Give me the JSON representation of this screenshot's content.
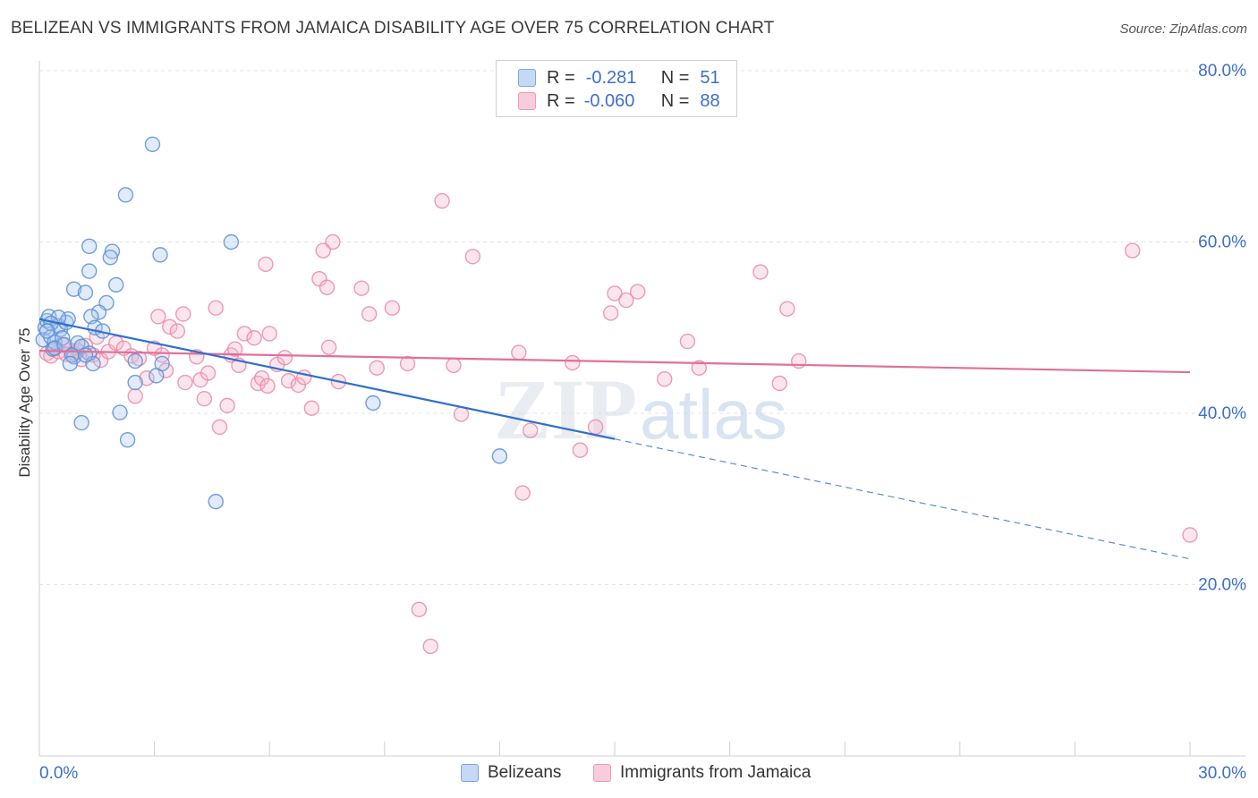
{
  "title": "BELIZEAN VS IMMIGRANTS FROM JAMAICA DISABILITY AGE OVER 75 CORRELATION CHART",
  "source": "Source: ZipAtlas.com",
  "watermark": {
    "zip": "ZIP",
    "atlas": "atlas"
  },
  "legend": {
    "rows": [
      {
        "r_label": "R =",
        "r_value": "-0.281",
        "n_label": "N =",
        "n_value": "51"
      },
      {
        "r_label": "R =",
        "r_value": "-0.060",
        "n_label": "N =",
        "n_value": "88"
      }
    ]
  },
  "colors": {
    "blue_fill": "#a9c6ee",
    "blue_stroke": "#5b8ed6",
    "blue_line": "#2f6fce",
    "pink_fill": "#f5b8cb",
    "pink_stroke": "#e98aa8",
    "pink_line": "#e0709a",
    "tick_text": "#3d6fc9",
    "grid": "#e4e4e4"
  },
  "chart_data": {
    "type": "scatter",
    "title": "BELIZEAN VS IMMIGRANTS FROM JAMAICA DISABILITY AGE OVER 75 CORRELATION CHART",
    "xlabel": "",
    "ylabel": "Disability Age Over 75",
    "xlim": [
      0,
      30
    ],
    "ylim": [
      0,
      80
    ],
    "x_ticks": [
      {
        "value": 0,
        "label": "0.0%"
      },
      {
        "value": 30,
        "label": "30.0%"
      }
    ],
    "y_ticks": [
      {
        "value": 20,
        "label": "20.0%"
      },
      {
        "value": 40,
        "label": "40.0%"
      },
      {
        "value": 60,
        "label": "60.0%"
      },
      {
        "value": 80,
        "label": "80.0%"
      }
    ],
    "grid": true,
    "legend_position": "bottom",
    "series": [
      {
        "name": "Belizeans",
        "color": "#5b8ed6",
        "R": -0.281,
        "N": 51,
        "trend": {
          "x0": 0,
          "y0": 51.0,
          "x1": 15,
          "y1": 37.0,
          "dashed_to_x": 30,
          "dashed_to_y": 23.0
        },
        "points": [
          [
            0.1,
            48.6
          ],
          [
            0.15,
            50.0
          ],
          [
            0.2,
            50.8
          ],
          [
            0.25,
            51.3
          ],
          [
            0.3,
            48.9
          ],
          [
            0.35,
            47.5
          ],
          [
            0.4,
            48.3
          ],
          [
            0.5,
            50.2
          ],
          [
            0.55,
            49.8
          ],
          [
            0.6,
            48.8
          ],
          [
            0.7,
            50.6
          ],
          [
            0.75,
            51.0
          ],
          [
            0.5,
            51.2
          ],
          [
            0.3,
            50.5
          ],
          [
            0.2,
            49.6
          ],
          [
            0.4,
            47.6
          ],
          [
            0.65,
            48.0
          ],
          [
            0.9,
            46.6
          ],
          [
            1.0,
            48.2
          ],
          [
            1.1,
            47.8
          ],
          [
            0.85,
            46.8
          ],
          [
            1.3,
            47.0
          ],
          [
            1.4,
            45.8
          ],
          [
            0.8,
            45.8
          ],
          [
            1.2,
            46.8
          ],
          [
            0.9,
            54.5
          ],
          [
            1.2,
            54.1
          ],
          [
            1.3,
            56.6
          ],
          [
            1.3,
            59.5
          ],
          [
            1.9,
            58.9
          ],
          [
            1.85,
            58.2
          ],
          [
            2.0,
            55.0
          ],
          [
            1.75,
            52.9
          ],
          [
            1.55,
            51.8
          ],
          [
            1.35,
            51.3
          ],
          [
            1.45,
            50.0
          ],
          [
            1.65,
            49.6
          ],
          [
            2.25,
            65.5
          ],
          [
            2.95,
            71.4
          ],
          [
            3.15,
            58.5
          ],
          [
            5.0,
            60.0
          ],
          [
            2.5,
            46.1
          ],
          [
            3.05,
            44.4
          ],
          [
            3.2,
            45.8
          ],
          [
            2.5,
            43.6
          ],
          [
            2.1,
            40.1
          ],
          [
            1.1,
            38.9
          ],
          [
            2.3,
            36.9
          ],
          [
            4.6,
            29.7
          ],
          [
            8.7,
            41.2
          ],
          [
            12.0,
            35.0
          ]
        ]
      },
      {
        "name": "Immigrants from Jamaica",
        "color": "#e98aa8",
        "R": -0.06,
        "N": 88,
        "trend": {
          "x0": 0,
          "y0": 47.3,
          "x1": 30,
          "y1": 44.8
        },
        "points": [
          [
            0.2,
            47.0
          ],
          [
            0.3,
            46.7
          ],
          [
            0.5,
            47.2
          ],
          [
            0.6,
            48.0
          ],
          [
            0.8,
            47.4
          ],
          [
            0.9,
            47.0
          ],
          [
            1.1,
            46.3
          ],
          [
            1.2,
            47.9
          ],
          [
            1.4,
            46.8
          ],
          [
            1.6,
            46.2
          ],
          [
            1.8,
            47.2
          ],
          [
            2.0,
            48.2
          ],
          [
            2.2,
            47.6
          ],
          [
            2.4,
            46.7
          ],
          [
            2.6,
            46.4
          ],
          [
            2.8,
            44.1
          ],
          [
            3.0,
            47.6
          ],
          [
            3.2,
            46.8
          ],
          [
            3.4,
            50.1
          ],
          [
            3.6,
            49.6
          ],
          [
            3.1,
            51.3
          ],
          [
            3.75,
            51.6
          ],
          [
            4.6,
            52.3
          ],
          [
            3.8,
            43.6
          ],
          [
            4.1,
            46.6
          ],
          [
            4.2,
            43.9
          ],
          [
            4.3,
            41.7
          ],
          [
            4.4,
            44.7
          ],
          [
            4.7,
            38.4
          ],
          [
            4.9,
            40.9
          ],
          [
            5.0,
            46.8
          ],
          [
            5.1,
            47.5
          ],
          [
            5.2,
            45.6
          ],
          [
            5.35,
            49.3
          ],
          [
            5.6,
            48.8
          ],
          [
            5.7,
            43.5
          ],
          [
            5.8,
            44.1
          ],
          [
            5.95,
            43.2
          ],
          [
            6.0,
            49.3
          ],
          [
            6.2,
            45.7
          ],
          [
            6.4,
            46.5
          ],
          [
            6.5,
            43.8
          ],
          [
            6.75,
            43.3
          ],
          [
            6.9,
            44.2
          ],
          [
            7.1,
            40.6
          ],
          [
            7.3,
            55.7
          ],
          [
            7.5,
            54.7
          ],
          [
            7.65,
            60.0
          ],
          [
            7.4,
            59.0
          ],
          [
            7.55,
            47.7
          ],
          [
            7.8,
            43.7
          ],
          [
            8.4,
            54.6
          ],
          [
            8.6,
            51.6
          ],
          [
            8.8,
            45.3
          ],
          [
            9.2,
            52.3
          ],
          [
            9.6,
            45.8
          ],
          [
            5.9,
            57.4
          ],
          [
            10.5,
            64.8
          ],
          [
            10.8,
            45.6
          ],
          [
            11.0,
            39.9
          ],
          [
            11.3,
            58.3
          ],
          [
            12.5,
            47.1
          ],
          [
            12.8,
            38.0
          ],
          [
            12.6,
            30.7
          ],
          [
            13.9,
            45.9
          ],
          [
            14.1,
            35.7
          ],
          [
            14.5,
            38.4
          ],
          [
            14.9,
            51.7
          ],
          [
            15.0,
            54.0
          ],
          [
            15.3,
            53.2
          ],
          [
            15.6,
            54.2
          ],
          [
            16.3,
            44.0
          ],
          [
            16.9,
            48.4
          ],
          [
            17.2,
            45.3
          ],
          [
            18.8,
            56.5
          ],
          [
            19.3,
            43.5
          ],
          [
            19.5,
            52.2
          ],
          [
            19.8,
            46.1
          ],
          [
            28.5,
            59.0
          ],
          [
            30.0,
            25.8
          ],
          [
            0.4,
            47.7
          ],
          [
            1.0,
            47.3
          ],
          [
            1.5,
            48.9
          ],
          [
            2.5,
            42.0
          ],
          [
            3.3,
            45.0
          ],
          [
            0.7,
            46.9
          ],
          [
            9.9,
            17.1
          ],
          [
            10.2,
            12.8
          ]
        ]
      }
    ]
  }
}
